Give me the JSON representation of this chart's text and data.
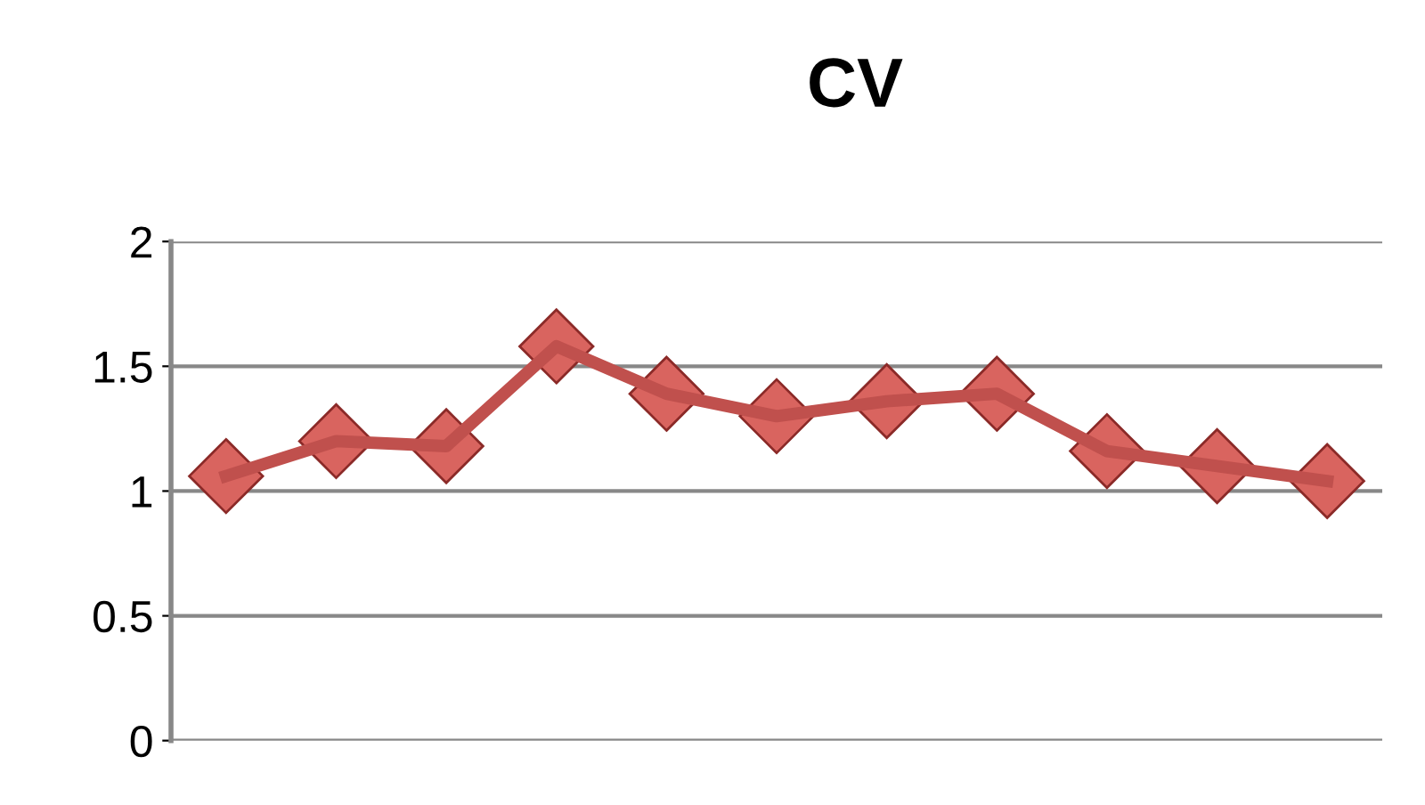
{
  "chart_data": {
    "type": "line",
    "title": "CV",
    "categories": [
      null,
      null,
      null,
      null,
      null,
      null,
      null,
      null,
      null,
      null,
      null
    ],
    "series": [
      {
        "color": "#c0504d",
        "values": [
          1.06,
          1.2,
          1.18,
          1.58,
          1.39,
          1.3,
          1.36,
          1.39,
          1.16,
          1.1,
          1.04
        ]
      }
    ],
    "ylim": [
      0,
      2
    ],
    "yticks": [
      0,
      0.5,
      1,
      1.5,
      2
    ],
    "grid": "y",
    "marker": "diamond",
    "line_style": "solid",
    "legend": false
  }
}
